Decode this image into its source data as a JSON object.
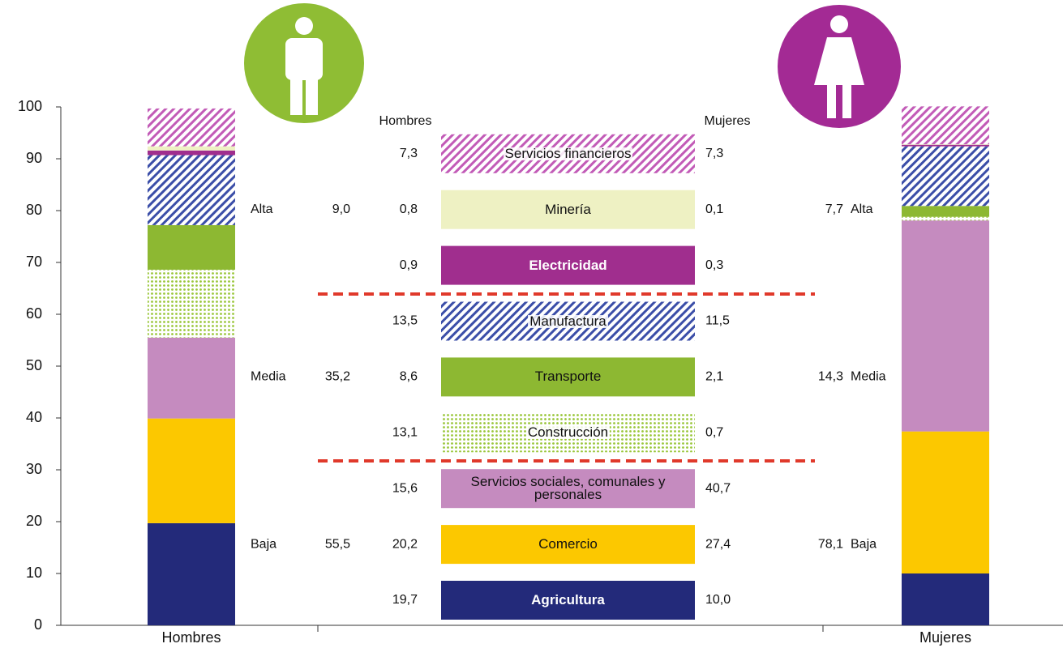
{
  "chart_data": {
    "type": "stacked-bar",
    "categories": [
      "Hombres",
      "Mujeres"
    ],
    "ylim": [
      0,
      100
    ],
    "yticks": [
      0,
      10,
      20,
      30,
      40,
      50,
      60,
      70,
      80,
      90,
      100
    ],
    "series": [
      {
        "name": "Agricultura",
        "color": "#232a7a",
        "text_color": "#ffffff",
        "values": [
          19.7,
          10.0
        ],
        "value_labels": [
          "19,7",
          "10,0"
        ]
      },
      {
        "name": "Comercio",
        "color": "#fcc800",
        "text_color": "#111111",
        "values": [
          20.2,
          27.4
        ],
        "value_labels": [
          "20,2",
          "27,4"
        ]
      },
      {
        "name": "Servicios sociales, comunales y personales",
        "color": "#c58bbf",
        "text_color": "#111111",
        "values": [
          15.6,
          40.7
        ],
        "value_labels": [
          "15,6",
          "40,7"
        ]
      },
      {
        "name": "Construcción",
        "color": "#9ac63a",
        "pattern": "dots",
        "text_color": "#111111",
        "values": [
          13.1,
          0.7
        ],
        "value_labels": [
          "13,1",
          "0,7"
        ]
      },
      {
        "name": "Transporte",
        "color": "#8db832",
        "text_color": "#111111",
        "values": [
          8.6,
          2.1
        ],
        "value_labels": [
          "8,6",
          "2,1"
        ]
      },
      {
        "name": "Manufactura",
        "color": "#3b4ea8",
        "pattern": "hatch",
        "text_color": "#111111",
        "values": [
          13.5,
          11.5
        ],
        "value_labels": [
          "13,5",
          "11,5"
        ]
      },
      {
        "name": "Electricidad",
        "color": "#a02e8e",
        "text_color": "#ffffff",
        "values": [
          0.9,
          0.3
        ],
        "value_labels": [
          "0,9",
          "0,3"
        ]
      },
      {
        "name": "Minería",
        "color": "#eef1c3",
        "text_color": "#111111",
        "values": [
          0.8,
          0.1
        ],
        "value_labels": [
          "0,8",
          "0,1"
        ]
      },
      {
        "name": "Servicios financieros",
        "color": "#c25bb7",
        "pattern": "hatch",
        "text_color": "#111111",
        "values": [
          7.3,
          7.3
        ],
        "value_labels": [
          "7,3",
          "7,3"
        ]
      }
    ],
    "groups": [
      {
        "name": "Baja",
        "values": [
          55.5,
          78.1
        ],
        "value_labels": [
          "55,5",
          "78,1"
        ]
      },
      {
        "name": "Media",
        "values": [
          35.2,
          14.3
        ],
        "value_labels": [
          "35,2",
          "14,3"
        ]
      },
      {
        "name": "Alta",
        "values": [
          9.0,
          7.7
        ],
        "value_labels": [
          "9,0",
          "7,7"
        ]
      }
    ]
  }
}
